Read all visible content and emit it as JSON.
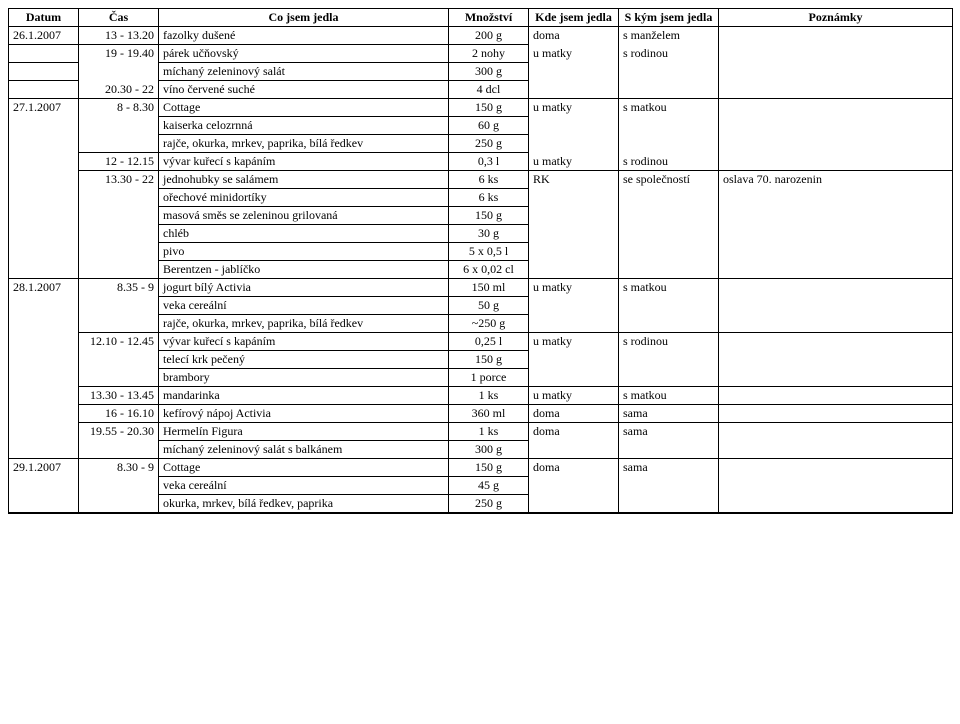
{
  "columns": [
    "Datum",
    "Čas",
    "Co jsem jedla",
    "Množství",
    "Kde jsem jedla",
    "S kým jsem jedla",
    "Poznámky"
  ],
  "rows": [
    {
      "datum": "26.1.2007",
      "cas": "13 - 13.20",
      "co": "fazolky dušené",
      "mnoz": "200 g",
      "kde": "doma",
      "skym": "s manželem",
      "pozn": "",
      "group_start": [
        "datum",
        "kde",
        "skym",
        "pozn"
      ],
      "group_end": [
        "datum"
      ]
    },
    {
      "datum": "",
      "cas": "19 - 19.40",
      "co": "párek učňovský",
      "mnoz": "2 nohy",
      "kde": "u matky",
      "skym": "s rodinou",
      "pozn": "",
      "group_start": [
        "cas",
        "kde",
        "skym",
        "pozn"
      ]
    },
    {
      "datum": "",
      "cas": "",
      "co": "míchaný zeleninový salát",
      "mnoz": "300 g",
      "kde": "",
      "skym": "",
      "pozn": ""
    },
    {
      "datum": "",
      "cas": "20.30 - 22",
      "co": "víno červené suché",
      "mnoz": "4 dcl",
      "kde": "",
      "skym": "",
      "pozn": "",
      "group_end": [
        "cas",
        "kde",
        "skym",
        "pozn"
      ]
    },
    {
      "datum": "27.1.2007",
      "cas": "8 - 8.30",
      "co": "Cottage",
      "mnoz": "150 g",
      "kde": "u matky",
      "skym": "s matkou",
      "pozn": "",
      "group_start": [
        "datum",
        "cas",
        "kde",
        "skym",
        "pozn"
      ]
    },
    {
      "datum": "",
      "cas": "",
      "co": "kaiserka celozrnná",
      "mnoz": "60 g",
      "kde": "",
      "skym": "",
      "pozn": ""
    },
    {
      "datum": "",
      "cas": "",
      "co": "rajče, okurka, mrkev, paprika, bílá ředkev",
      "mnoz": "250 g",
      "kde": "",
      "skym": "",
      "pozn": "",
      "group_end": [
        "cas"
      ]
    },
    {
      "datum": "",
      "cas": "12 - 12.15",
      "co": "vývar kuřecí s kapáním",
      "mnoz": "0,3 l",
      "kde": "u matky",
      "skym": "s rodinou",
      "pozn": "",
      "group_start": [
        "kde",
        "skym",
        "pozn"
      ],
      "group_end": [
        "kde",
        "skym",
        "pozn"
      ]
    },
    {
      "datum": "",
      "cas": "13.30 - 22",
      "co": "jednohubky se salámem",
      "mnoz": "6 ks",
      "kde": "RK",
      "skym": "se společností",
      "pozn": "oslava 70. narozenin",
      "group_start": [
        "cas",
        "kde",
        "skym",
        "pozn"
      ]
    },
    {
      "datum": "",
      "cas": "",
      "co": "ořechové minidortíky",
      "mnoz": "6 ks",
      "kde": "",
      "skym": "",
      "pozn": ""
    },
    {
      "datum": "",
      "cas": "",
      "co": "masová směs se zeleninou grilovaná",
      "mnoz": "150 g",
      "kde": "",
      "skym": "",
      "pozn": ""
    },
    {
      "datum": "",
      "cas": "",
      "co": "chléb",
      "mnoz": "30 g",
      "kde": "",
      "skym": "",
      "pozn": ""
    },
    {
      "datum": "",
      "cas": "",
      "co": "pivo",
      "mnoz": "5 x 0,5 l",
      "kde": "",
      "skym": "",
      "pozn": ""
    },
    {
      "datum": "",
      "cas": "",
      "co": "Berentzen - jablíčko",
      "mnoz": "6 x 0,02 cl",
      "kde": "",
      "skym": "",
      "pozn": "",
      "group_end": [
        "datum",
        "cas",
        "kde",
        "skym",
        "pozn"
      ]
    },
    {
      "datum": "28.1.2007",
      "cas": "8.35 - 9",
      "co": "jogurt bílý Activia",
      "mnoz": "150 ml",
      "kde": "u matky",
      "skym": "s matkou",
      "pozn": "",
      "group_start": [
        "datum",
        "cas",
        "kde",
        "skym",
        "pozn"
      ]
    },
    {
      "datum": "",
      "cas": "",
      "co": "veka cereální",
      "mnoz": "50 g",
      "kde": "",
      "skym": "",
      "pozn": ""
    },
    {
      "datum": "",
      "cas": "",
      "co": "rajče, okurka, mrkev, paprika, bílá ředkev",
      "mnoz": "~250 g",
      "kde": "",
      "skym": "",
      "pozn": "",
      "group_end": [
        "cas",
        "kde",
        "skym",
        "pozn"
      ]
    },
    {
      "datum": "",
      "cas": "12.10 - 12.45",
      "co": "vývar kuřecí s kapáním",
      "mnoz": "0,25 l",
      "kde": "u matky",
      "skym": "s rodinou",
      "pozn": "",
      "group_start": [
        "cas",
        "kde",
        "skym",
        "pozn"
      ]
    },
    {
      "datum": "",
      "cas": "",
      "co": "telecí krk pečený",
      "mnoz": "150 g",
      "kde": "",
      "skym": "",
      "pozn": ""
    },
    {
      "datum": "",
      "cas": "",
      "co": "brambory",
      "mnoz": "1 porce",
      "kde": "",
      "skym": "",
      "pozn": "",
      "group_end": [
        "cas",
        "kde",
        "skym",
        "pozn"
      ]
    },
    {
      "datum": "",
      "cas": "13.30 - 13.45",
      "co": "mandarinka",
      "mnoz": "1 ks",
      "kde": "u matky",
      "skym": "s matkou",
      "pozn": ""
    },
    {
      "datum": "",
      "cas": "16 - 16.10",
      "co": "kefírový nápoj Activia",
      "mnoz": "360 ml",
      "kde": "doma",
      "skym": "sama",
      "pozn": ""
    },
    {
      "datum": "",
      "cas": "19.55 - 20.30",
      "co": "Hermelín Figura",
      "mnoz": "1 ks",
      "kde": "doma",
      "skym": "sama",
      "pozn": "",
      "group_start": [
        "cas",
        "kde",
        "skym",
        "pozn"
      ]
    },
    {
      "datum": "",
      "cas": "",
      "co": "míchaný zeleninový salát s balkánem",
      "mnoz": "300 g",
      "kde": "",
      "skym": "",
      "pozn": "",
      "group_end": [
        "datum",
        "cas",
        "kde",
        "skym",
        "pozn"
      ]
    },
    {
      "datum": "29.1.2007",
      "cas": "8.30 - 9",
      "co": "Cottage",
      "mnoz": "150 g",
      "kde": "doma",
      "skym": "sama",
      "pozn": "",
      "group_start": [
        "datum",
        "cas",
        "kde",
        "skym",
        "pozn"
      ]
    },
    {
      "datum": "",
      "cas": "",
      "co": "veka cereální",
      "mnoz": "45 g",
      "kde": "",
      "skym": "",
      "pozn": ""
    },
    {
      "datum": "",
      "cas": "",
      "co": "okurka, mrkev, bílá ředkev, paprika",
      "mnoz": "250 g",
      "kde": "",
      "skym": "",
      "pozn": "",
      "group_end": [
        "datum",
        "cas",
        "kde",
        "skym",
        "pozn"
      ],
      "last": true
    }
  ]
}
